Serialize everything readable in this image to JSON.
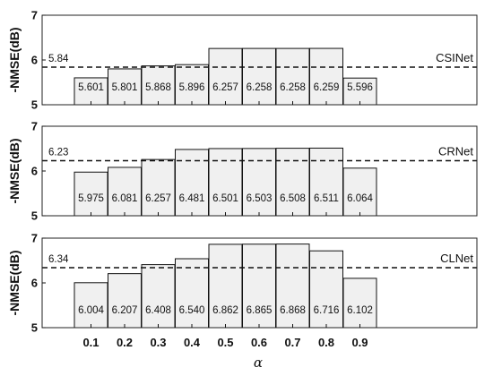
{
  "chart_data": {
    "type": "bar",
    "xlabel": "α",
    "categories": [
      "0.1",
      "0.2",
      "0.3",
      "0.4",
      "0.5",
      "0.6",
      "0.7",
      "0.8",
      "0.9"
    ],
    "panels": [
      {
        "model": "CSINet",
        "ylabel": "-NMSE(dB)",
        "ylim": [
          5,
          7
        ],
        "yticks": [
          "5",
          "6",
          "7"
        ],
        "reference_line": 5.84,
        "reference_label": "5.84",
        "values": [
          5.601,
          5.801,
          5.868,
          5.896,
          6.257,
          6.258,
          6.258,
          6.259,
          5.596
        ],
        "value_labels": [
          "5.601",
          "5.801",
          "5.868",
          "5.896",
          "6.257",
          "6.258",
          "6.258",
          "6.259",
          "5.596"
        ]
      },
      {
        "model": "CRNet",
        "ylabel": "-NMSE(dB)",
        "ylim": [
          5,
          7
        ],
        "yticks": [
          "5",
          "6",
          "7"
        ],
        "reference_line": 6.23,
        "reference_label": "6.23",
        "values": [
          5.975,
          6.081,
          6.257,
          6.481,
          6.501,
          6.503,
          6.508,
          6.511,
          6.064
        ],
        "value_labels": [
          "5.975",
          "6.081",
          "6.257",
          "6.481",
          "6.501",
          "6.503",
          "6.508",
          "6.511",
          "6.064"
        ]
      },
      {
        "model": "CLNet",
        "ylabel": "-NMSE(dB)",
        "ylim": [
          5,
          7
        ],
        "yticks": [
          "5",
          "6",
          "7"
        ],
        "reference_line": 6.34,
        "reference_label": "6.34",
        "values": [
          6.004,
          6.207,
          6.408,
          6.54,
          6.862,
          6.865,
          6.868,
          6.716,
          6.102
        ],
        "value_labels": [
          "6.004",
          "6.207",
          "6.408",
          "6.540",
          "6.862",
          "6.865",
          "6.868",
          "6.716",
          "6.102"
        ]
      }
    ]
  }
}
